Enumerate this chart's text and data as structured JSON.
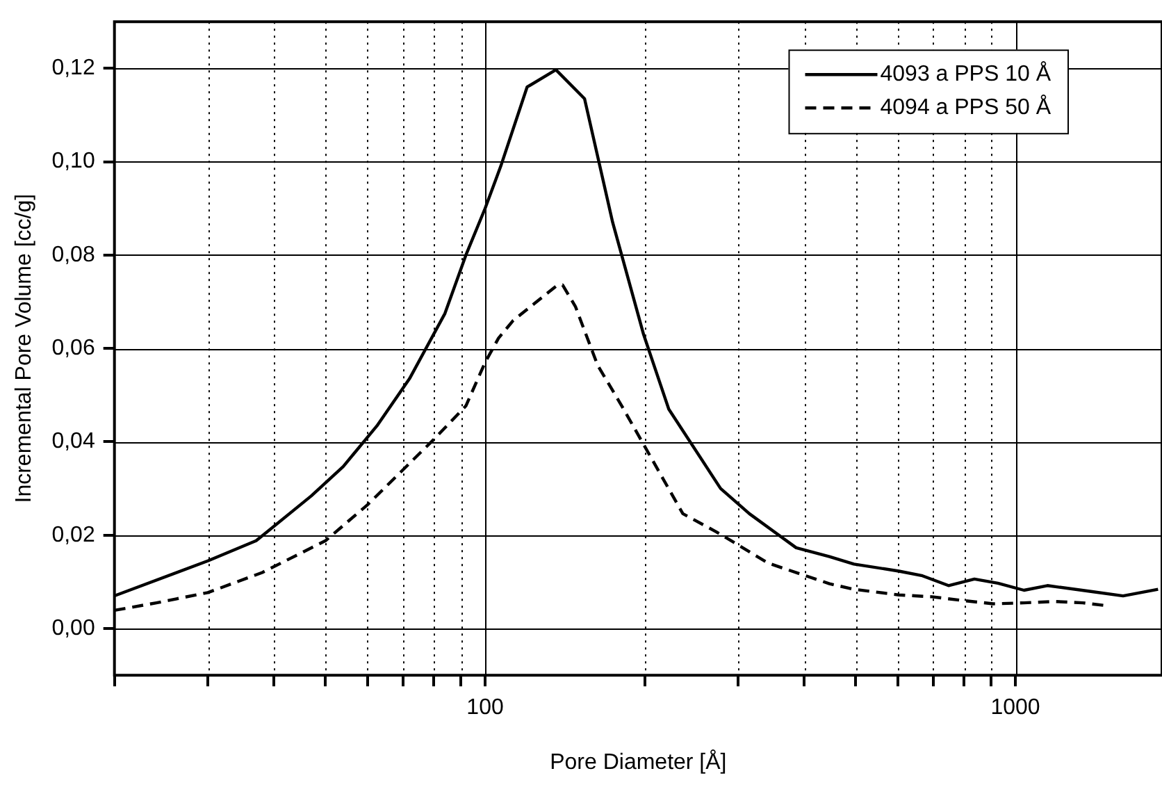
{
  "chart_data": {
    "type": "line",
    "xlabel": "Pore Diameter [Å]",
    "ylabel": "Incremental Pore Volume [cc/g]",
    "log": "x",
    "grid": true,
    "legend": "top right",
    "marker": "none",
    "xlim": [
      20,
      1890
    ],
    "ylim": [
      -0.01,
      0.13
    ],
    "xticks": [
      {
        "value": 20,
        "label": null
      },
      {
        "value": 30,
        "label": null
      },
      {
        "value": 40,
        "label": null
      },
      {
        "value": 50,
        "label": null
      },
      {
        "value": 60,
        "label": null
      },
      {
        "value": 70,
        "label": null
      },
      {
        "value": 80,
        "label": null
      },
      {
        "value": 90,
        "label": null
      },
      100,
      {
        "value": 200,
        "label": null
      },
      {
        "value": 300,
        "label": null
      },
      {
        "value": 400,
        "label": null
      },
      {
        "value": 500,
        "label": null
      },
      {
        "value": 600,
        "label": null
      },
      {
        "value": 700,
        "label": null
      },
      {
        "value": 800,
        "label": null
      },
      {
        "value": 900,
        "label": null
      },
      1000
    ],
    "yticks": [
      {
        "value": 0,
        "label": "0,00"
      },
      {
        "value": 0.02,
        "label": "0,02"
      },
      {
        "value": 0.04,
        "label": "0,04"
      },
      {
        "value": 0.06,
        "label": "0,06"
      },
      {
        "value": 0.08,
        "label": "0,08"
      },
      {
        "value": 0.1,
        "label": "0,10"
      },
      {
        "value": 0.12,
        "label": "0,12"
      }
    ],
    "series": [
      {
        "name": "4093 a PPS 10 Å",
        "color": "#000000",
        "line_style": "solid",
        "x": [
          20,
          30,
          37,
          47,
          54,
          62.5,
          72,
          84,
          92,
          100,
          107,
          120,
          136,
          154,
          174,
          199,
          222,
          278,
          315,
          386,
          446,
          496,
          603,
          668,
          748,
          837,
          927,
          1038,
          1149,
          1396,
          1596,
          1858
        ],
        "values": [
          0.007,
          0.0145,
          0.0188,
          0.0284,
          0.0347,
          0.0434,
          0.0535,
          0.0675,
          0.08,
          0.09,
          0.099,
          0.116,
          0.1197,
          0.1135,
          0.087,
          0.063,
          0.047,
          0.03,
          0.0246,
          0.0173,
          0.0154,
          0.0138,
          0.0123,
          0.0113,
          0.0092,
          0.0106,
          0.0097,
          0.0082,
          0.0092,
          0.0079,
          0.007,
          0.0084
        ]
      },
      {
        "name": "4094 a PPS 50 Å",
        "color": "#000000",
        "line_style": "dashed",
        "x": [
          20,
          24,
          30,
          38,
          50,
          60,
          80,
          92,
          100,
          106,
          113,
          136,
          140,
          148,
          163,
          181,
          200,
          236,
          273,
          342,
          446,
          496,
          603,
          696,
          795,
          908,
          1038,
          1185,
          1340,
          1484
        ],
        "values": [
          0.0039,
          0.0055,
          0.0077,
          0.012,
          0.0188,
          0.0265,
          0.0405,
          0.0477,
          0.057,
          0.0622,
          0.066,
          0.0733,
          0.0736,
          0.069,
          0.0564,
          0.0477,
          0.039,
          0.0246,
          0.0207,
          0.014,
          0.0096,
          0.0084,
          0.0072,
          0.0068,
          0.006,
          0.0053,
          0.0055,
          0.0058,
          0.0055,
          0.0049
        ]
      }
    ]
  }
}
